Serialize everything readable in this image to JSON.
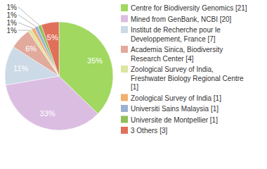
{
  "chart_data": {
    "type": "pie",
    "categories": [
      "Centre for Biodiversity Genomics [21]",
      "Mined from GenBank, NCBI [20]",
      "Institut de Recherche pour le Developpement, France [7]",
      "Academia Sinica, Biodiversity Research Center [4]",
      "Zoological Survey of India, Freshwater Biology Regional Centre [1]",
      "Zoological Survey of India [1]",
      "Universiti Sains Malaysia [1]",
      "Universite de Montpellier [1]",
      "3 Others [3]"
    ],
    "values": [
      35,
      33,
      11,
      6,
      1,
      1,
      1,
      1,
      5
    ],
    "value_labels": [
      "35%",
      "33%",
      "11%",
      "6%",
      "1%",
      "1%",
      "1%",
      "1%",
      "5%"
    ],
    "colors": [
      "#a0d860",
      "#dcbde2",
      "#ccd9e6",
      "#e2aa9c",
      "#dde5a0",
      "#f0b070",
      "#9ab0d2",
      "#8fc05a",
      "#e0705a"
    ],
    "data_labels": true,
    "legend": "right"
  }
}
